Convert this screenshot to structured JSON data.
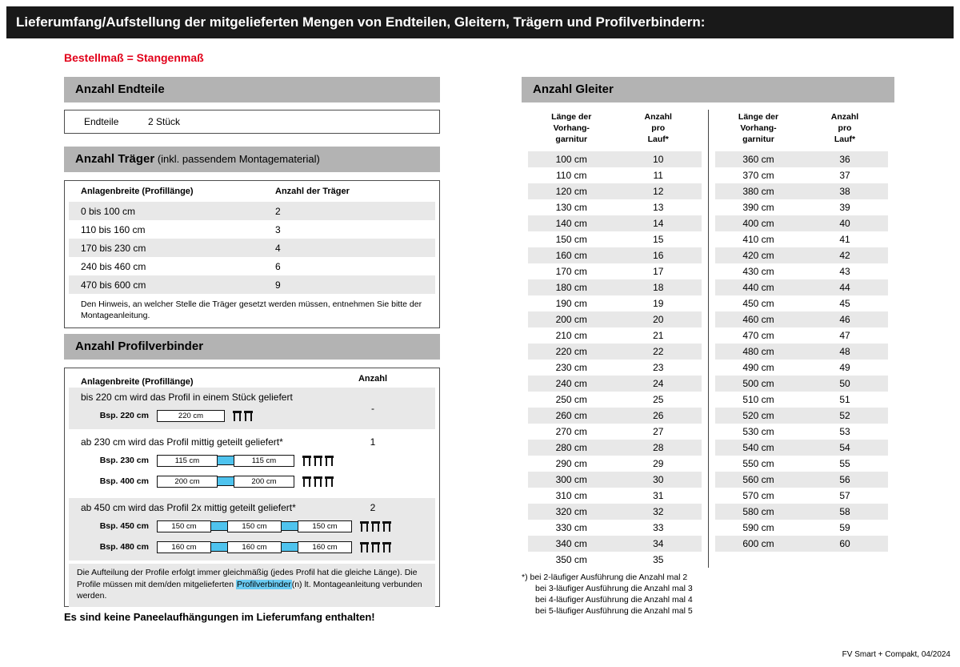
{
  "page": {
    "title": "Lieferumfang/Aufstellung der mitgelieferten Mengen von Endteilen, Gleitern, Trägern und Profilverbindern:",
    "subtitle": "Bestellmaß = Stangenmaß",
    "footer": "FV Smart + Compakt, 04/2024"
  },
  "endteile": {
    "header": "Anzahl Endteile",
    "label": "Endteile",
    "value": "2 Stück"
  },
  "traeger": {
    "header_bold": "Anzahl Träger",
    "header_rest": " (inkl. passendem Montagematerial)",
    "col1": "Anlagenbreite (Profillänge)",
    "col2": "Anzahl der Träger",
    "rows": [
      {
        "range": "0 bis 100 cm",
        "count": "2"
      },
      {
        "range": "110 bis 160 cm",
        "count": "3"
      },
      {
        "range": "170 bis 230 cm",
        "count": "4"
      },
      {
        "range": "240 bis 460 cm",
        "count": "6"
      },
      {
        "range": "470 bis 600 cm",
        "count": "9"
      }
    ],
    "note": "Den Hinweis, an welcher Stelle die Träger gesetzt werden müssen, entnehmen Sie bitte der Montageanleitung."
  },
  "profilverbinder": {
    "header": "Anzahl Profilverbinder",
    "col1": "Anlagenbreite (Profillänge)",
    "col2": "Anzahl",
    "sections": [
      {
        "text": "bis 220 cm wird das Profil in einem Stück geliefert",
        "count": "-",
        "examples": [
          {
            "label": "Bsp. 220 cm",
            "segments": [
              "220 cm"
            ],
            "brackets": 2
          }
        ]
      },
      {
        "text": "ab 230 cm wird das Profil mittig geteilt geliefert*",
        "count": "1",
        "examples": [
          {
            "label": "Bsp. 230 cm",
            "segments": [
              "115 cm",
              "115 cm"
            ],
            "brackets": 3
          },
          {
            "label": "Bsp. 400 cm",
            "segments": [
              "200 cm",
              "200 cm"
            ],
            "brackets": 3
          }
        ]
      },
      {
        "text": "ab 450 cm wird das Profil 2x mittig geteilt geliefert*",
        "count": "2",
        "examples": [
          {
            "label": "Bsp. 450 cm",
            "segments": [
              "150 cm",
              "150 cm",
              "150 cm"
            ],
            "brackets": 3
          },
          {
            "label": "Bsp. 480 cm",
            "segments": [
              "160 cm",
              "160 cm",
              "160 cm"
            ],
            "brackets": 3
          }
        ]
      }
    ],
    "note_before": "Die Aufteilung der Profile erfolgt immer gleichmäßig (jedes Profil hat die gleiche Länge). Die Profile müssen mit dem/den mitgelieferten ",
    "note_highlight": "Profilverbinder",
    "note_after": "(n) lt. Montageanleitung verbunden werden."
  },
  "paneel_note": "Es sind keine Paneelaufhängungen im Lieferumfang enthalten!",
  "gleiter": {
    "header": "Anzahl Gleiter",
    "col1_lines": [
      "Länge der",
      "Vorhang-",
      "garnitur"
    ],
    "col2_lines": [
      "Anzahl",
      "pro",
      "Lauf*"
    ],
    "left_rows": [
      [
        "100 cm",
        "10"
      ],
      [
        "110 cm",
        "11"
      ],
      [
        "120 cm",
        "12"
      ],
      [
        "130 cm",
        "13"
      ],
      [
        "140 cm",
        "14"
      ],
      [
        "150 cm",
        "15"
      ],
      [
        "160 cm",
        "16"
      ],
      [
        "170 cm",
        "17"
      ],
      [
        "180 cm",
        "18"
      ],
      [
        "190 cm",
        "19"
      ],
      [
        "200 cm",
        "20"
      ],
      [
        "210 cm",
        "21"
      ],
      [
        "220 cm",
        "22"
      ],
      [
        "230 cm",
        "23"
      ],
      [
        "240 cm",
        "24"
      ],
      [
        "250 cm",
        "25"
      ],
      [
        "260 cm",
        "26"
      ],
      [
        "270 cm",
        "27"
      ],
      [
        "280 cm",
        "28"
      ],
      [
        "290 cm",
        "29"
      ],
      [
        "300 cm",
        "30"
      ],
      [
        "310 cm",
        "31"
      ],
      [
        "320 cm",
        "32"
      ],
      [
        "330 cm",
        "33"
      ],
      [
        "340 cm",
        "34"
      ],
      [
        "350 cm",
        "35"
      ]
    ],
    "right_rows": [
      [
        "360 cm",
        "36"
      ],
      [
        "370 cm",
        "37"
      ],
      [
        "380 cm",
        "38"
      ],
      [
        "390 cm",
        "39"
      ],
      [
        "400 cm",
        "40"
      ],
      [
        "410 cm",
        "41"
      ],
      [
        "420 cm",
        "42"
      ],
      [
        "430 cm",
        "43"
      ],
      [
        "440 cm",
        "44"
      ],
      [
        "450 cm",
        "45"
      ],
      [
        "460 cm",
        "46"
      ],
      [
        "470 cm",
        "47"
      ],
      [
        "480 cm",
        "48"
      ],
      [
        "490 cm",
        "49"
      ],
      [
        "500 cm",
        "50"
      ],
      [
        "510 cm",
        "51"
      ],
      [
        "520 cm",
        "52"
      ],
      [
        "530 cm",
        "53"
      ],
      [
        "540 cm",
        "54"
      ],
      [
        "550 cm",
        "55"
      ],
      [
        "560 cm",
        "56"
      ],
      [
        "570 cm",
        "57"
      ],
      [
        "580 cm",
        "58"
      ],
      [
        "590 cm",
        "59"
      ],
      [
        "600 cm",
        "60"
      ]
    ],
    "footnotes": [
      "*) bei 2-läufiger Ausführung die Anzahl mal 2",
      "bei 3-läufiger Ausführung die Anzahl mal 3",
      "bei 4-läufiger Ausführung die Anzahl mal 4",
      "bei 5-läufiger Ausführung die Anzahl mal 5"
    ]
  },
  "colors": {
    "accent_red": "#e2001a",
    "bar_black": "#191919",
    "header_gray": "#b3b3b3",
    "stripe": "#e8e8e8",
    "connector": "#4ec3ee",
    "highlight": "#6bcbf2",
    "border": "#4d4d4d"
  }
}
